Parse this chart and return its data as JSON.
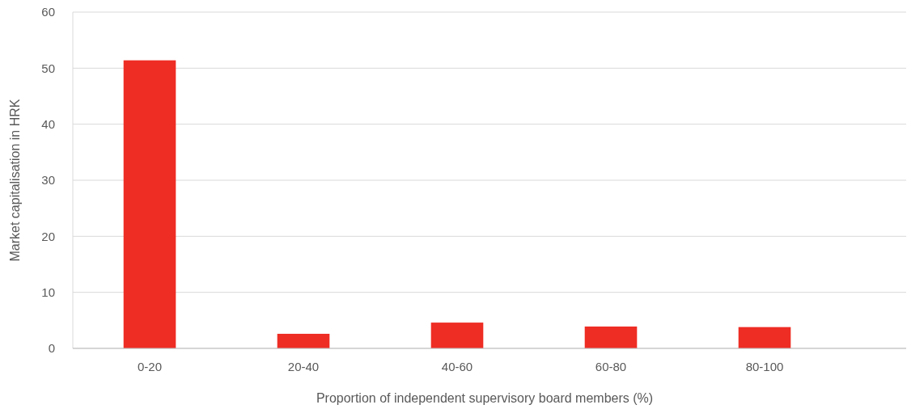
{
  "chart_data": {
    "type": "bar",
    "xlabel": "Proportion of independent supervisory board members (%)",
    "ylabel": "Market capitalisation in HRK",
    "categories": [
      "0-20",
      "20-40",
      "40-60",
      "60-80",
      "80-100"
    ],
    "values": [
      51.4,
      2.6,
      4.6,
      3.9,
      3.8
    ],
    "color": "#ee2d24",
    "ylim": [
      0,
      60
    ],
    "yticks": [
      0,
      10,
      20,
      30,
      40,
      50,
      60
    ],
    "grid": "y"
  }
}
